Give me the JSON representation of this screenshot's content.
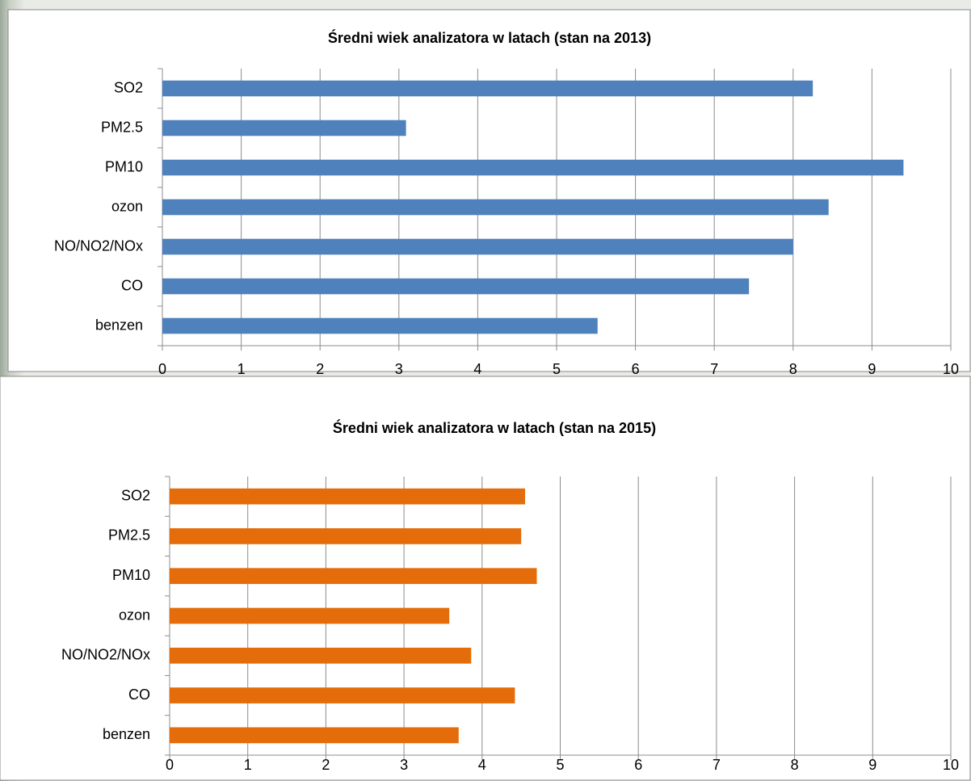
{
  "chart_data": [
    {
      "type": "bar",
      "orientation": "horizontal",
      "title": "Średni wiek analizatora w latach (stan na 2013)",
      "categories": [
        "SO2",
        "PM2.5",
        "PM10",
        "ozon",
        "NO/NO2/NOx",
        "CO",
        "benzen"
      ],
      "values": [
        8.25,
        3.09,
        9.4,
        8.45,
        8.0,
        7.44,
        5.52
      ],
      "color": "#4f81bd",
      "xlim": [
        0,
        10
      ],
      "xticks": [
        0,
        1,
        2,
        3,
        4,
        5,
        6,
        7,
        8,
        9,
        10
      ],
      "grid": true
    },
    {
      "type": "bar",
      "orientation": "horizontal",
      "title": "Średni wiek analizatora w latach (stan na 2015)",
      "categories": [
        "SO2",
        "PM2.5",
        "PM10",
        "ozon",
        "NO/NO2/NOx",
        "CO",
        "benzen"
      ],
      "values": [
        4.55,
        4.5,
        4.7,
        3.58,
        3.86,
        4.42,
        3.7
      ],
      "color": "#e46c0a",
      "xlim": [
        0,
        10
      ],
      "xticks": [
        0,
        1,
        2,
        3,
        4,
        5,
        6,
        7,
        8,
        9,
        10
      ],
      "grid": true
    }
  ]
}
